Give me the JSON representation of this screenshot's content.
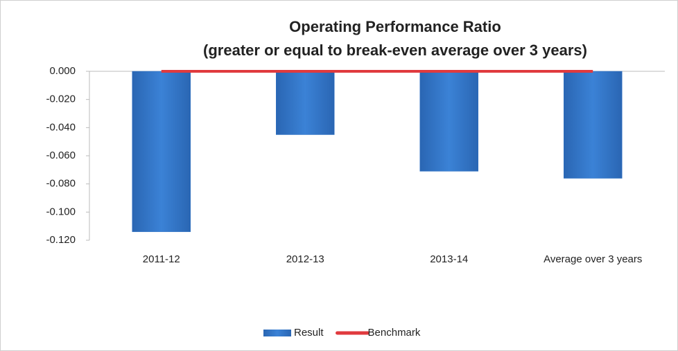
{
  "chart_data": {
    "type": "bar",
    "title": "Operating Performance Ratio",
    "subtitle": "(greater or equal to break-even average over 3 years)",
    "categories": [
      "2011-12",
      "2012-13",
      "2013-14",
      "Average over 3 years"
    ],
    "series": [
      {
        "name": "Result",
        "color": "#2e72c4",
        "values": [
          -0.114,
          -0.045,
          -0.071,
          -0.076
        ]
      },
      {
        "name": "Benchmark",
        "color": "#e03a3e",
        "type": "line",
        "values": [
          0,
          0,
          0,
          0
        ]
      }
    ],
    "ylim": [
      -0.12,
      0
    ],
    "yticks": [
      {
        "value": 0,
        "label": "0.000"
      },
      {
        "value": -0.02,
        "label": "-0.020"
      },
      {
        "value": -0.04,
        "label": "-0.040"
      },
      {
        "value": -0.06,
        "label": "-0.060"
      },
      {
        "value": -0.08,
        "label": "-0.080"
      },
      {
        "value": -0.1,
        "label": "-0.100"
      },
      {
        "value": -0.12,
        "label": "-0.120"
      }
    ],
    "legend": "bottom"
  }
}
